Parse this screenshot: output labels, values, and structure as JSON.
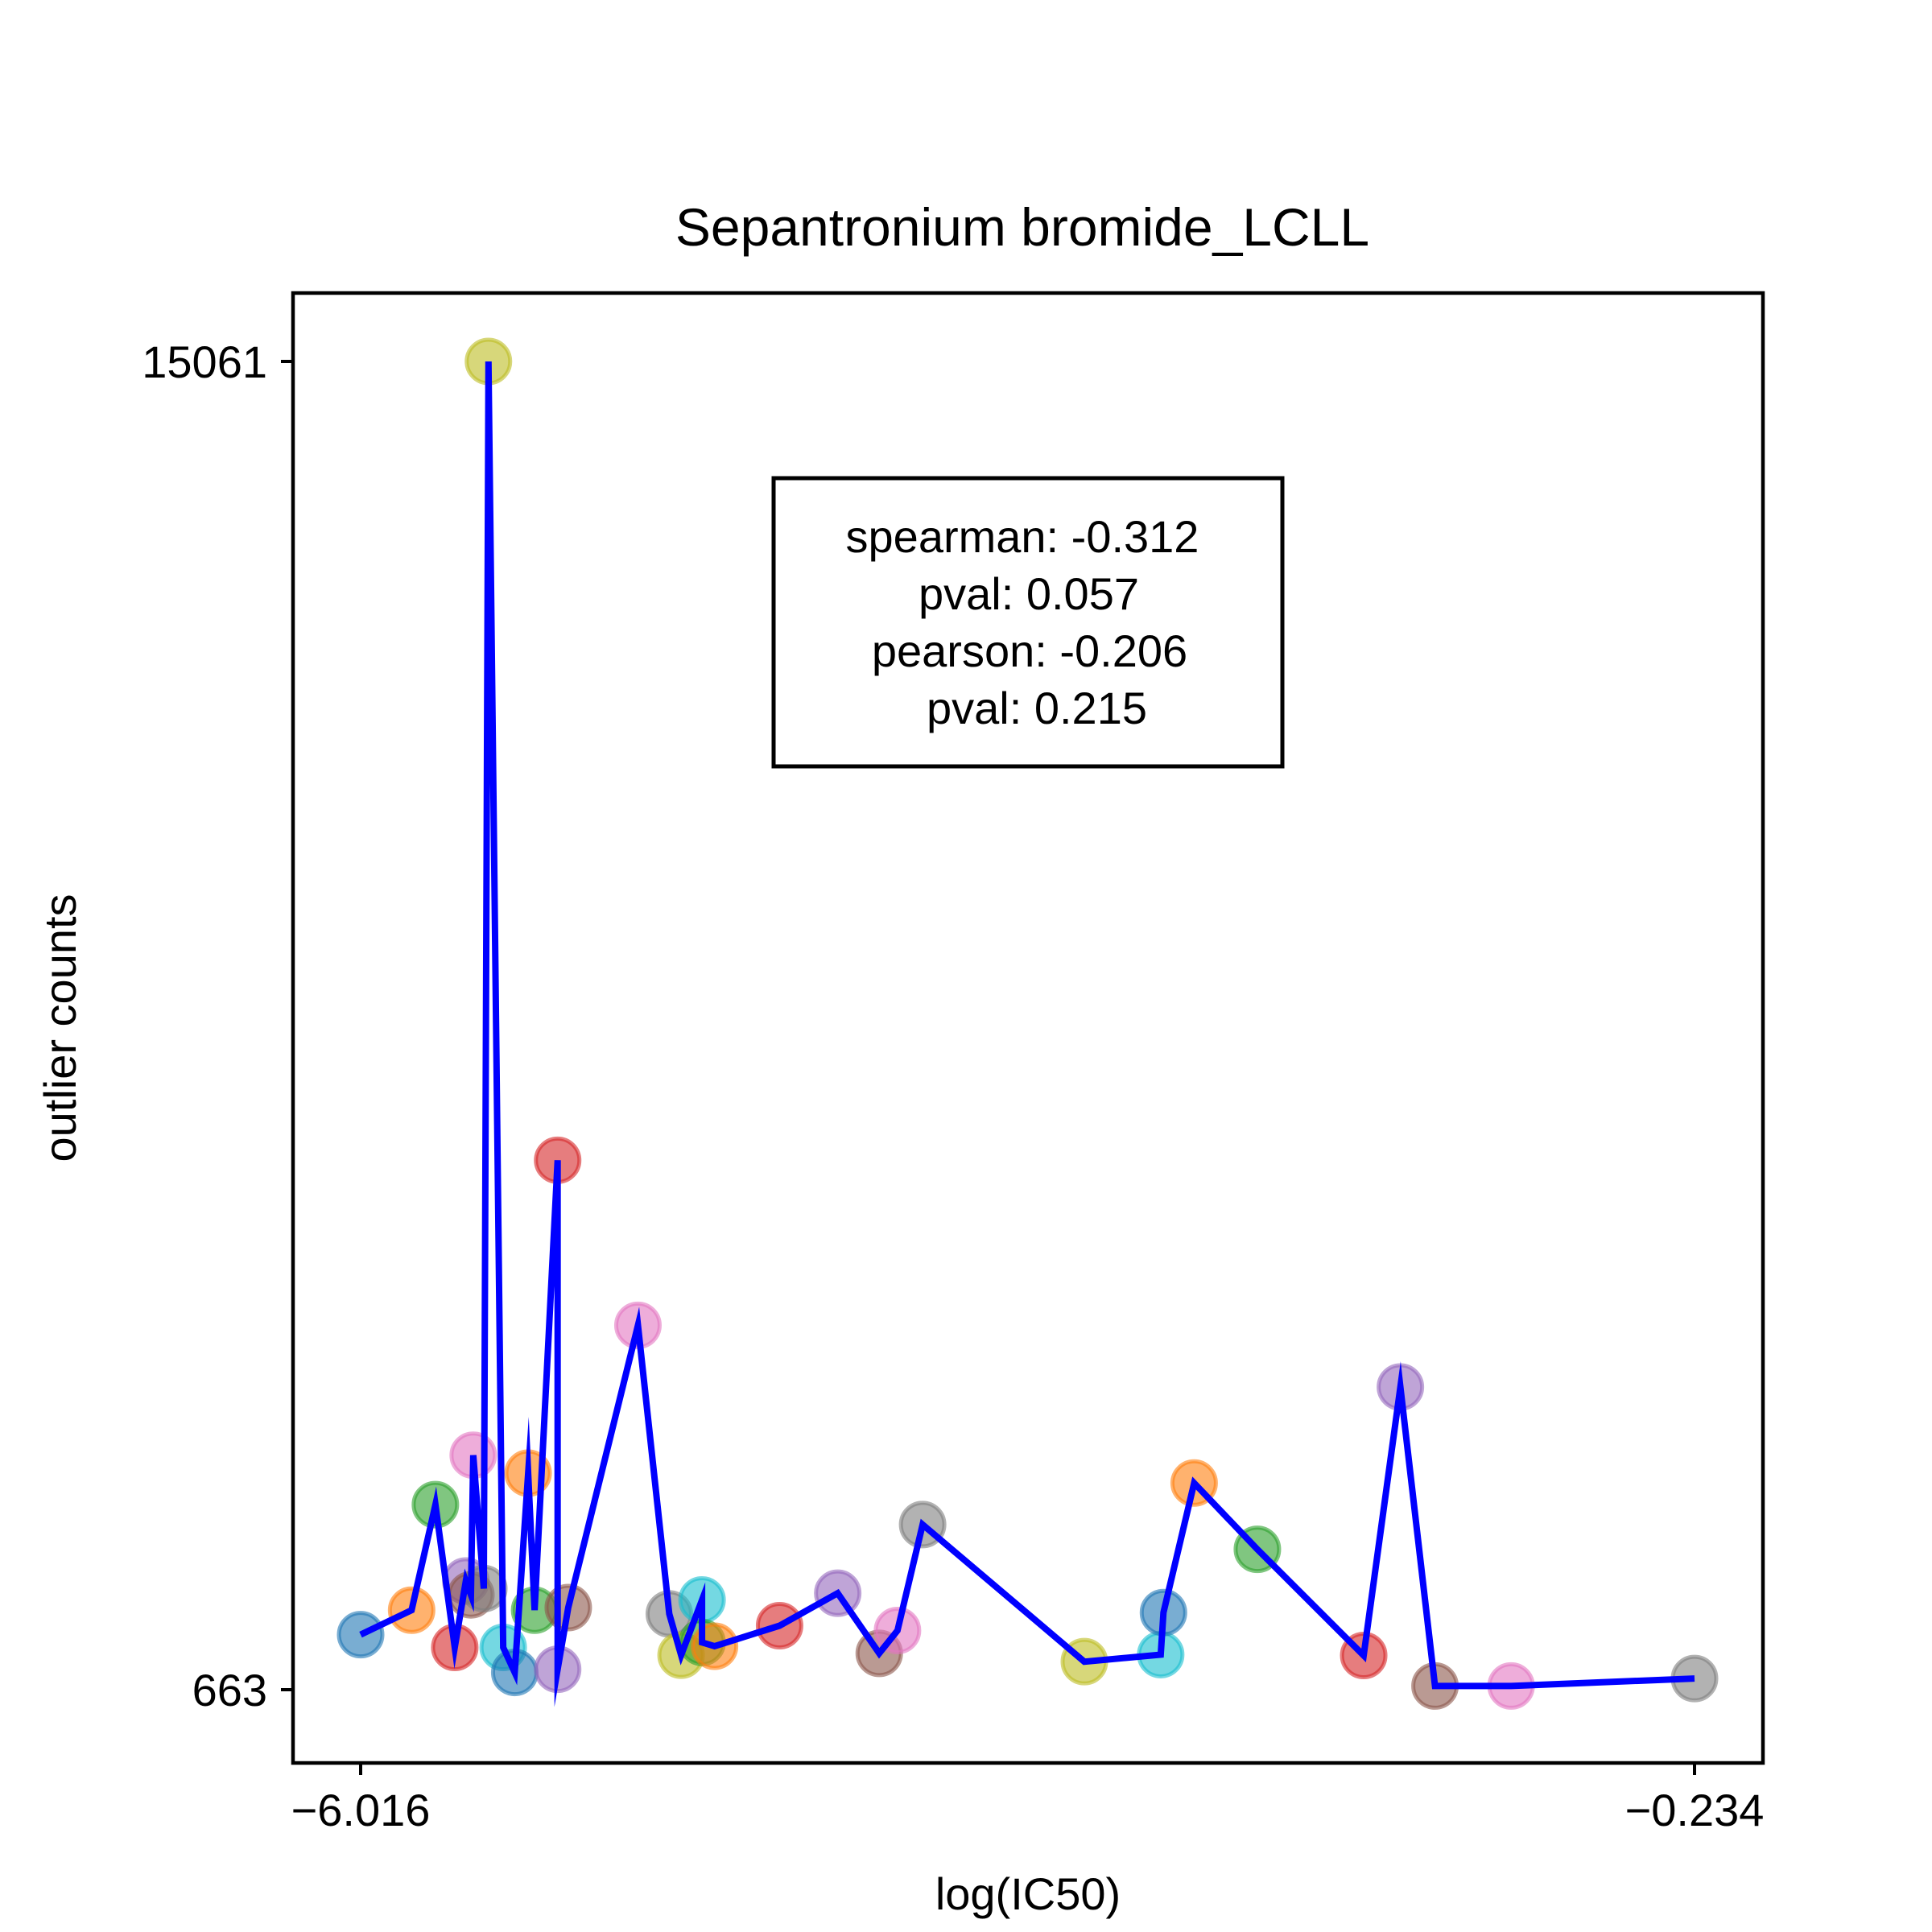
{
  "chart_data": {
    "type": "scatter",
    "title": "Sepantronium bromide_LCLL",
    "xlabel": "log(IC50)",
    "ylabel": "outlier counts",
    "xlim": [
      -6.016,
      -0.234
    ],
    "ylim": [
      663,
      15061
    ],
    "xticks": [
      {
        "value": -6.016,
        "label": "−6.016"
      },
      {
        "value": -0.234,
        "label": "−0.234"
      }
    ],
    "yticks": [
      {
        "value": 663,
        "label": "663"
      },
      {
        "value": 15061,
        "label": "15061"
      }
    ],
    "grid": false,
    "line_color": "#0000ff",
    "annotation": [
      "spearman: -0.312",
      "pval: 0.057",
      "pearson: -0.206",
      "pval: 0.215"
    ],
    "points": [
      {
        "x": -6.016,
        "y": 1260,
        "color": "#1f77b4"
      },
      {
        "x": -5.795,
        "y": 1525,
        "color": "#ff7f0e"
      },
      {
        "x": -5.692,
        "y": 2669,
        "color": "#2ca02c"
      },
      {
        "x": -5.608,
        "y": 1121,
        "color": "#d62728"
      },
      {
        "x": -5.56,
        "y": 1841,
        "color": "#9467bd"
      },
      {
        "x": -5.538,
        "y": 1691,
        "color": "#8c564b"
      },
      {
        "x": -5.528,
        "y": 3205,
        "color": "#e377c2"
      },
      {
        "x": -5.482,
        "y": 1759,
        "color": "#7f7f7f"
      },
      {
        "x": -5.462,
        "y": 15061,
        "color": "#bcbd22"
      },
      {
        "x": -5.398,
        "y": 1121,
        "color": "#17becf"
      },
      {
        "x": -5.348,
        "y": 850,
        "color": "#1f77b4"
      },
      {
        "x": -5.29,
        "y": 3010,
        "color": "#ff7f0e"
      },
      {
        "x": -5.262,
        "y": 1525,
        "color": "#2ca02c"
      },
      {
        "x": -5.162,
        "y": 6402,
        "color": "#d62728"
      },
      {
        "x": -5.162,
        "y": 884,
        "color": "#9467bd"
      },
      {
        "x": -5.116,
        "y": 1553,
        "color": "#8c564b"
      },
      {
        "x": -4.814,
        "y": 4613,
        "color": "#e377c2"
      },
      {
        "x": -4.678,
        "y": 1484,
        "color": "#7f7f7f"
      },
      {
        "x": -4.627,
        "y": 1037,
        "color": "#bcbd22"
      },
      {
        "x": -4.536,
        "y": 1636,
        "color": "#17becf"
      },
      {
        "x": -4.536,
        "y": 1175,
        "color": "#2ca02c"
      },
      {
        "x": -4.482,
        "y": 1134,
        "color": "#ff7f0e"
      },
      {
        "x": -4.2,
        "y": 1357,
        "color": "#d62728"
      },
      {
        "x": -3.948,
        "y": 1709,
        "color": "#9467bd"
      },
      {
        "x": -3.768,
        "y": 1057,
        "color": "#8c564b"
      },
      {
        "x": -3.689,
        "y": 1304,
        "color": "#e377c2"
      },
      {
        "x": -3.58,
        "y": 2453,
        "color": "#7f7f7f"
      },
      {
        "x": -2.879,
        "y": 967,
        "color": "#bcbd22"
      },
      {
        "x": -2.548,
        "y": 1043,
        "color": "#17becf"
      },
      {
        "x": -2.536,
        "y": 1499,
        "color": "#1f77b4"
      },
      {
        "x": -2.403,
        "y": 2903,
        "color": "#ff7f0e"
      },
      {
        "x": -2.129,
        "y": 2185,
        "color": "#2ca02c"
      },
      {
        "x": -1.668,
        "y": 1034,
        "color": "#d62728"
      },
      {
        "x": -1.509,
        "y": 3944,
        "color": "#9467bd"
      },
      {
        "x": -1.359,
        "y": 703,
        "color": "#8c564b"
      },
      {
        "x": -1.029,
        "y": 703,
        "color": "#e377c2"
      },
      {
        "x": -0.234,
        "y": 784,
        "color": "#7f7f7f"
      }
    ]
  }
}
